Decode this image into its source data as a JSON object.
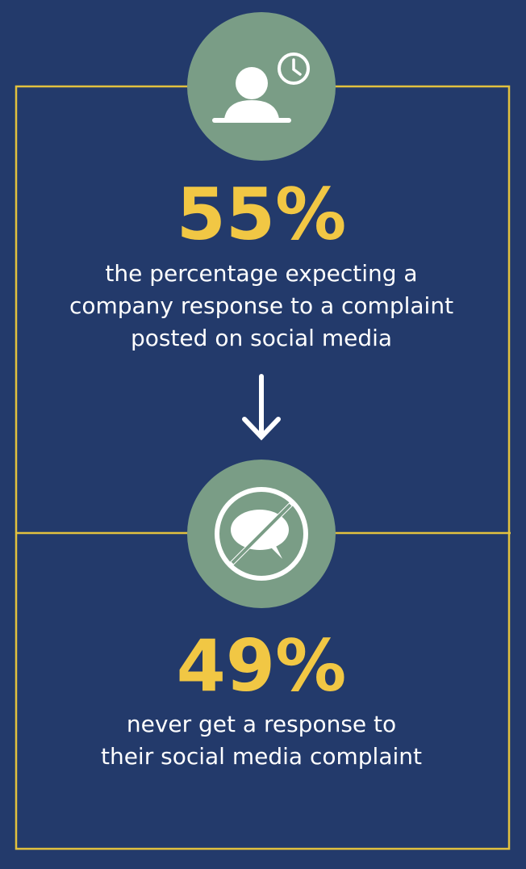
{
  "stats": [
    {
      "figure": "55%",
      "lines": [
        "the percentage expecting a",
        "company response to a complaint",
        "posted on social media"
      ]
    },
    {
      "figure": "49%",
      "lines": [
        "never get a response to",
        "their social media complaint"
      ]
    }
  ]
}
